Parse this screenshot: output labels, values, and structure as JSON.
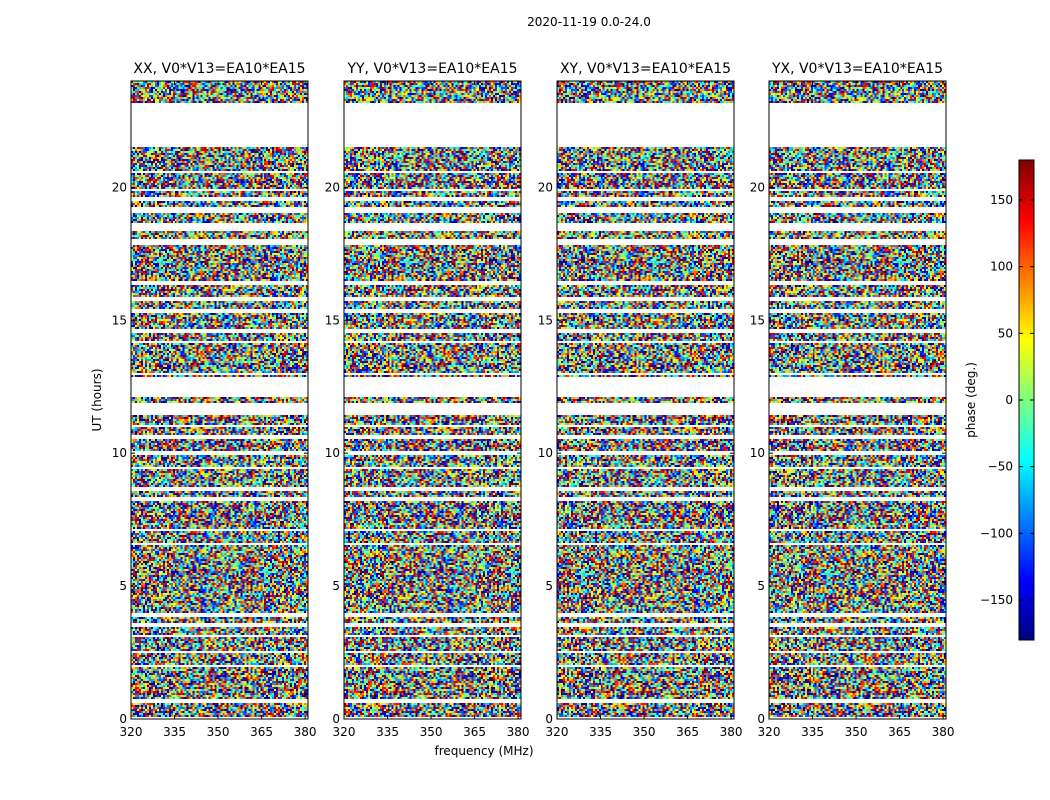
{
  "chart_data": {
    "type": "heatmap",
    "suptitle": "2020-11-19 0.0-24.0",
    "xlabel": "frequency (MHz)",
    "ylabel": "UT (hours)",
    "xlim": [
      320,
      381
    ],
    "ylim": [
      0,
      24
    ],
    "xticks": [
      320,
      335,
      350,
      365,
      380
    ],
    "yticks": [
      0,
      5,
      10,
      15,
      20
    ],
    "panels": [
      {
        "name": "XX",
        "title": "XX, V0*V13=EA10*EA15"
      },
      {
        "name": "YY",
        "title": "YY, V0*V13=EA10*EA15"
      },
      {
        "name": "XY",
        "title": "XY, V0*V13=EA10*EA15"
      },
      {
        "name": "YX",
        "title": "YX, V0*V13=EA10*EA15"
      }
    ],
    "data_gaps_ut_hours": [
      [
        0.0,
        0.1
      ],
      [
        0.62,
        0.72
      ],
      [
        1.95,
        2.05
      ],
      [
        2.45,
        2.55
      ],
      [
        3.05,
        3.15
      ],
      [
        3.45,
        3.6
      ],
      [
        3.85,
        3.95
      ],
      [
        6.55,
        6.65
      ],
      [
        7.05,
        7.15
      ],
      [
        8.2,
        8.35
      ],
      [
        8.6,
        8.75
      ],
      [
        9.4,
        9.5
      ],
      [
        9.95,
        10.05
      ],
      [
        10.55,
        10.65
      ],
      [
        10.95,
        11.05
      ],
      [
        11.4,
        11.9
      ],
      [
        12.15,
        12.85
      ],
      [
        12.95,
        13.05
      ],
      [
        14.15,
        14.25
      ],
      [
        14.55,
        14.65
      ],
      [
        15.3,
        15.4
      ],
      [
        15.75,
        15.85
      ],
      [
        16.35,
        16.45
      ],
      [
        17.85,
        18.05
      ],
      [
        18.35,
        18.65
      ],
      [
        19.05,
        19.25
      ],
      [
        19.45,
        19.6
      ],
      [
        19.85,
        19.95
      ],
      [
        20.55,
        20.65
      ],
      [
        21.55,
        23.15
      ]
    ],
    "colorbar": {
      "label": "phase (deg.)",
      "range": [
        -180,
        180
      ],
      "ticks": [
        -150,
        -100,
        -50,
        0,
        50,
        100,
        150
      ],
      "tick_labels": [
        "−150",
        "−100",
        "−50",
        "0",
        "50",
        "100",
        "150"
      ],
      "colormap": "jet",
      "stops": [
        "#00007f",
        "#0000ff",
        "#007fff",
        "#00ffff",
        "#7fff7f",
        "#ffff00",
        "#ff7f00",
        "#ff0000",
        "#7f0000"
      ]
    }
  }
}
